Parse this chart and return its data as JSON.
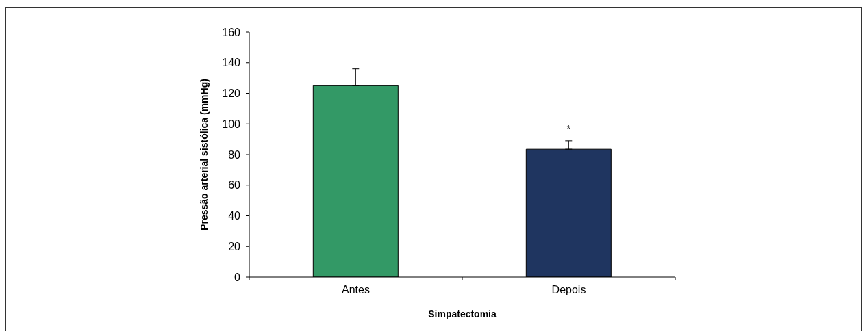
{
  "chart_data": {
    "type": "bar",
    "xlabel": "Simpatectomia",
    "ylabel": "Pressão arterial sistólica (mmHg)",
    "categories": [
      "Antes",
      "Depois"
    ],
    "values": [
      125,
      83.5
    ],
    "colors": [
      "#339966",
      "#1f3560"
    ],
    "errors": [
      [
        125,
        136
      ],
      [
        83.5,
        89
      ]
    ],
    "ylim": [
      0,
      160
    ],
    "yticks": [
      0,
      20,
      40,
      60,
      80,
      100,
      120,
      140,
      160
    ],
    "annotations": [
      "*"
    ]
  }
}
